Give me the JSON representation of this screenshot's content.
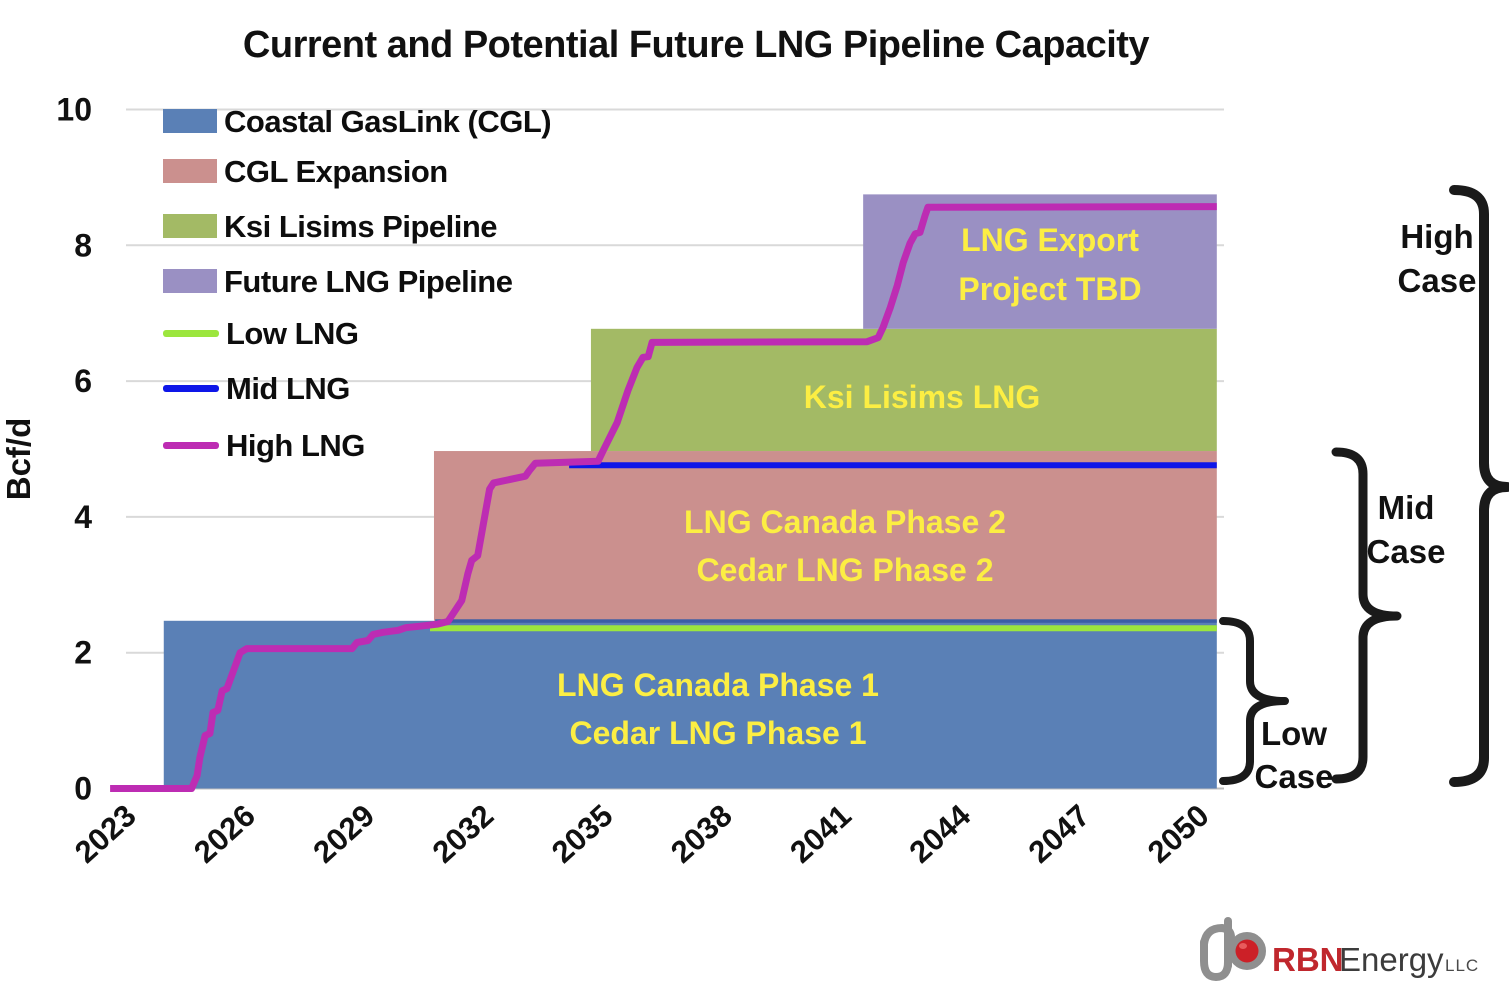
{
  "title": "Current and Potential Future LNG Pipeline Capacity",
  "y_axis": {
    "label": "Bcf/d"
  },
  "legend": [
    {
      "label": "Coastal GasLink (CGL)",
      "type": "area",
      "color": "#5a80b6"
    },
    {
      "label": "CGL Expansion",
      "type": "area",
      "color": "#cb908e"
    },
    {
      "label": "Ksi Lisims Pipeline",
      "type": "area",
      "color": "#a3ba65"
    },
    {
      "label": "Future LNG Pipeline",
      "type": "area",
      "color": "#9a90c3"
    },
    {
      "label": "Low LNG",
      "type": "line",
      "color": "#9ce63e"
    },
    {
      "label": "Mid LNG",
      "type": "line",
      "color": "#0e16e8"
    },
    {
      "label": "High LNG",
      "type": "line",
      "color": "#bd2cb3"
    }
  ],
  "chart_data": {
    "type": "area",
    "title": "Current and Potential Future LNG Pipeline Capacity",
    "xlabel": "",
    "ylabel": "Bcf/d",
    "x_ticks": [
      2023,
      2026,
      2029,
      2032,
      2035,
      2038,
      2041,
      2044,
      2047,
      2050
    ],
    "y_ticks": [
      0,
      2,
      4,
      6,
      8,
      10
    ],
    "x_range": [
      2022.9,
      2050.33
    ],
    "y_range": [
      0,
      10
    ],
    "grid": "horizontal",
    "areas": [
      {
        "name": "Coastal GasLink (CGL)",
        "start_year": 2023.8,
        "end_year": 2050.3,
        "from_bcfd": 0,
        "to_bcfd": 2.47,
        "color": "#5a80b6",
        "label": [
          "LNG Canada Phase 1",
          "Cedar LNG Phase 1"
        ]
      },
      {
        "name": "CGL Expansion",
        "start_year": 2030.6,
        "end_year": 2050.3,
        "from_bcfd": 2.47,
        "to_bcfd": 4.97,
        "color": "#cb908e",
        "label": [
          "LNG Canada Phase 2",
          "Cedar LNG Phase 2"
        ]
      },
      {
        "name": "Ksi Lisims Pipeline",
        "start_year": 2034.55,
        "end_year": 2050.3,
        "from_bcfd": 4.97,
        "to_bcfd": 6.77,
        "color": "#a3ba65",
        "label": [
          "Ksi Lisims LNG"
        ]
      },
      {
        "name": "Future LNG Pipeline",
        "start_year": 2041.4,
        "end_year": 2050.3,
        "from_bcfd": 6.77,
        "to_bcfd": 8.75,
        "color": "#9a90c3",
        "label": [
          "LNG Export",
          "Project TBD"
        ]
      }
    ],
    "lines": [
      {
        "name": "Low LNG",
        "color": "#9ce63e",
        "width": 6,
        "points": [
          [
            2030.5,
            2.36
          ],
          [
            2050.3,
            2.36
          ]
        ]
      },
      {
        "name": "Mid LNG",
        "color": "#0e16e8",
        "width": 6,
        "points": [
          [
            2034.0,
            4.76
          ],
          [
            2050.3,
            4.76
          ]
        ]
      },
      {
        "name": "High LNG",
        "color": "#bd2cb3",
        "width": 7,
        "points": [
          [
            2022.45,
            0
          ],
          [
            2024.5,
            0
          ],
          [
            2024.64,
            0.19
          ],
          [
            2024.71,
            0.46
          ],
          [
            2024.84,
            0.78
          ],
          [
            2024.96,
            0.81
          ],
          [
            2025.04,
            1.12
          ],
          [
            2025.16,
            1.15
          ],
          [
            2025.27,
            1.44
          ],
          [
            2025.39,
            1.47
          ],
          [
            2025.72,
            2.0
          ],
          [
            2025.89,
            2.06
          ],
          [
            2028.54,
            2.06
          ],
          [
            2028.66,
            2.15
          ],
          [
            2028.94,
            2.18
          ],
          [
            2029.07,
            2.27
          ],
          [
            2029.32,
            2.3
          ],
          [
            2029.7,
            2.33
          ],
          [
            2029.9,
            2.37
          ],
          [
            2030.25,
            2.39
          ],
          [
            2030.68,
            2.42
          ],
          [
            2030.95,
            2.46
          ],
          [
            2031.3,
            2.77
          ],
          [
            2031.45,
            3.16
          ],
          [
            2031.55,
            3.36
          ],
          [
            2031.7,
            3.43
          ],
          [
            2032.0,
            4.41
          ],
          [
            2032.1,
            4.5
          ],
          [
            2032.9,
            4.6
          ],
          [
            2033.0,
            4.68
          ],
          [
            2033.15,
            4.79
          ],
          [
            2034.73,
            4.82
          ],
          [
            2034.86,
            4.98
          ],
          [
            2034.98,
            5.12
          ],
          [
            2035.21,
            5.39
          ],
          [
            2035.48,
            5.86
          ],
          [
            2035.71,
            6.2
          ],
          [
            2035.86,
            6.35
          ],
          [
            2035.99,
            6.36
          ],
          [
            2036.09,
            6.57
          ],
          [
            2041.5,
            6.58
          ],
          [
            2041.78,
            6.64
          ],
          [
            2041.9,
            6.79
          ],
          [
            2042.08,
            7.08
          ],
          [
            2042.26,
            7.41
          ],
          [
            2042.41,
            7.75
          ],
          [
            2042.58,
            8.03
          ],
          [
            2042.71,
            8.17
          ],
          [
            2042.83,
            8.19
          ],
          [
            2042.96,
            8.44
          ],
          [
            2043.03,
            8.56
          ],
          [
            2050.3,
            8.57
          ]
        ]
      }
    ]
  },
  "annotations": {
    "high_case": {
      "line1": "High",
      "line2": "Case"
    },
    "mid_case": {
      "line1": "Mid",
      "line2": "Case"
    },
    "low_case": {
      "line1": "Low",
      "line2": "Case"
    }
  },
  "logo": {
    "rbn": "RBN",
    "energy": "Energy",
    "llc": "LLC"
  }
}
